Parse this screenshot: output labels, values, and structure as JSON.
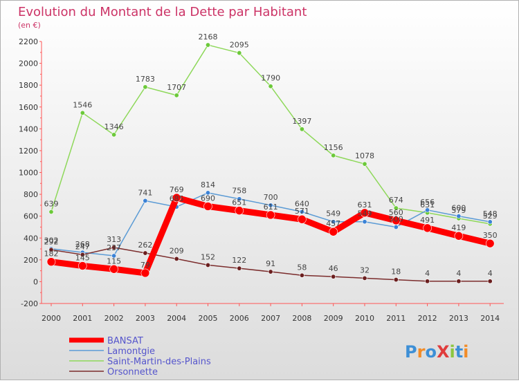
{
  "chart_data": {
    "type": "line",
    "title": "Evolution du Montant de la Dette par Habitant",
    "subtitle": "(en €)",
    "x": [
      "2000",
      "2001",
      "2002",
      "2003",
      "2004",
      "2005",
      "2006",
      "2007",
      "2008",
      "2009",
      "2010",
      "2011",
      "2012",
      "2013",
      "2014"
    ],
    "ylim": [
      -200,
      2200
    ],
    "yticks": [
      -200,
      0,
      200,
      400,
      600,
      800,
      1000,
      1200,
      1400,
      1600,
      1800,
      2000,
      2200
    ],
    "grid": false,
    "legend_position": "bottom-left",
    "series": [
      {
        "name": "BANSAT",
        "color": "#ff0000",
        "values": [
          182,
          145,
          115,
          79,
          769,
          690,
          651,
          611,
          571,
          457,
          631,
          560,
          491,
          419,
          350
        ]
      },
      {
        "name": "Lamontgie",
        "color": "#5b9bd5",
        "values": [
          302,
          268,
          237,
          741,
          685,
          814,
          758,
          700,
          640,
          549,
          549,
          500,
          656,
          600,
          548
        ]
      },
      {
        "name": "Saint-Martin-des-Plains",
        "color": "#8ed85a",
        "values": [
          639,
          1546,
          1346,
          1783,
          1707,
          2168,
          2095,
          1790,
          1397,
          1156,
          1078,
          674,
          631,
          579,
          529
        ]
      },
      {
        "name": "Orsonnette",
        "color": "#7b2c2c",
        "values": [
          292,
          247,
          313,
          262,
          209,
          152,
          122,
          91,
          58,
          46,
          32,
          18,
          4,
          4,
          4
        ]
      }
    ]
  },
  "logo": {
    "text": "ProXiti"
  }
}
